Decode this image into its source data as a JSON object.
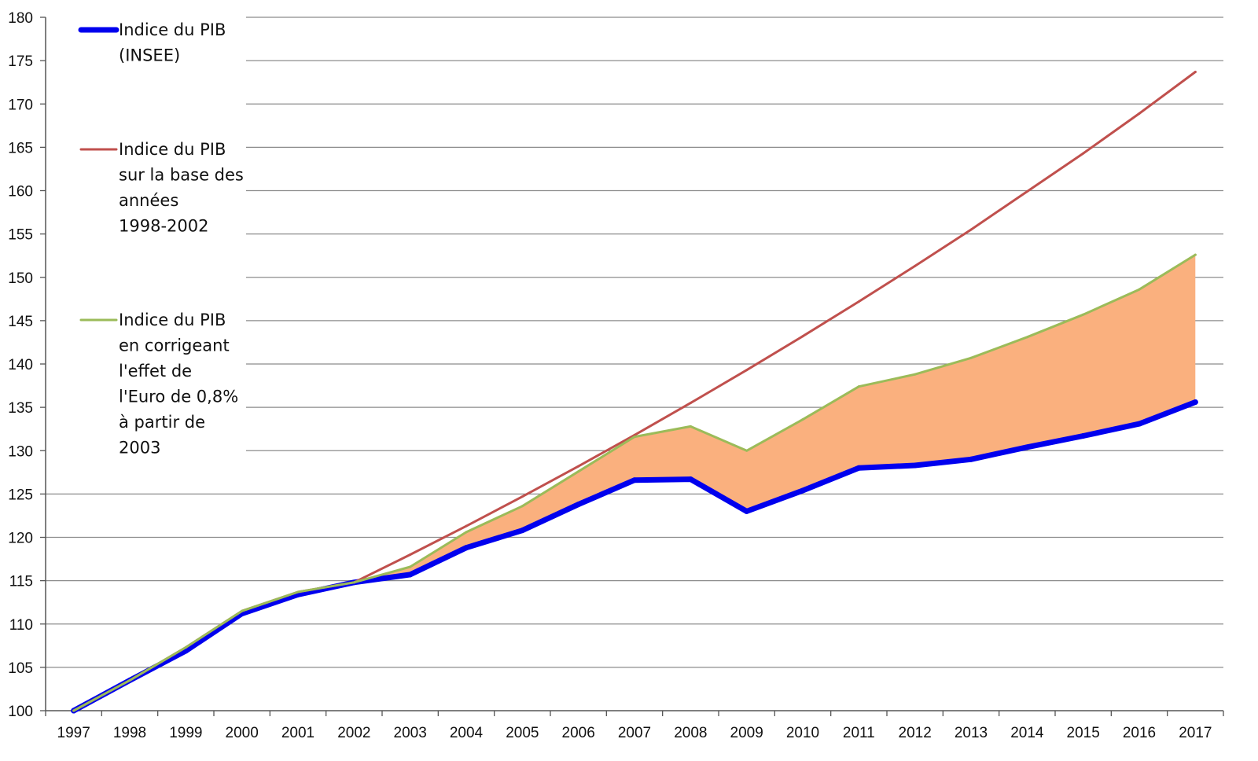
{
  "chart_data": {
    "type": "line",
    "x": [
      1997,
      1998,
      1999,
      2000,
      2001,
      2002,
      2003,
      2004,
      2005,
      2006,
      2007,
      2008,
      2009,
      2010,
      2011,
      2012,
      2013,
      2014,
      2015,
      2016,
      2017
    ],
    "ylim": [
      100,
      180
    ],
    "yticks": [
      100,
      105,
      110,
      115,
      120,
      125,
      130,
      135,
      140,
      145,
      150,
      155,
      160,
      165,
      170,
      175,
      180
    ],
    "grid": true,
    "legend_position": "top-left",
    "title": "",
    "xlabel": "",
    "ylabel": "",
    "fill_between": {
      "upper_series": 2,
      "lower_series": 0,
      "from": 2003,
      "color": "#fab07e"
    },
    "series": [
      {
        "name": [
          "Indice du PIB",
          "(INSEE)"
        ],
        "color": "#0000ee",
        "width": 7,
        "values": [
          100.0,
          103.5,
          106.9,
          111.2,
          113.4,
          114.8,
          115.7,
          118.8,
          120.8,
          123.8,
          126.6,
          126.7,
          123.0,
          125.4,
          128.0,
          128.3,
          129.0,
          130.4,
          131.7,
          133.1,
          135.6
        ]
      },
      {
        "name": [
          "Indice du PIB",
          "sur la base des",
          "années",
          "1998-2002"
        ],
        "color": "#c0504d",
        "width": 3,
        "values": [
          100.0,
          103.5,
          107.3,
          111.5,
          113.7,
          114.8,
          118.0,
          121.3,
          124.7,
          128.2,
          131.8,
          135.5,
          139.3,
          143.2,
          147.2,
          151.3,
          155.5,
          159.9,
          164.3,
          168.9,
          173.7
        ]
      },
      {
        "name": [
          "Indice du PIB",
          "en corrigeant",
          "l'effet de",
          "l'Euro de 0,8%",
          "à partir de",
          "2003"
        ],
        "color": "#9bbb59",
        "width": 3,
        "values": [
          100.0,
          103.5,
          107.3,
          111.5,
          113.7,
          114.8,
          116.6,
          120.6,
          123.6,
          127.6,
          131.6,
          132.8,
          130.0,
          133.6,
          137.4,
          138.8,
          140.7,
          143.1,
          145.7,
          148.6,
          152.6
        ]
      }
    ]
  }
}
